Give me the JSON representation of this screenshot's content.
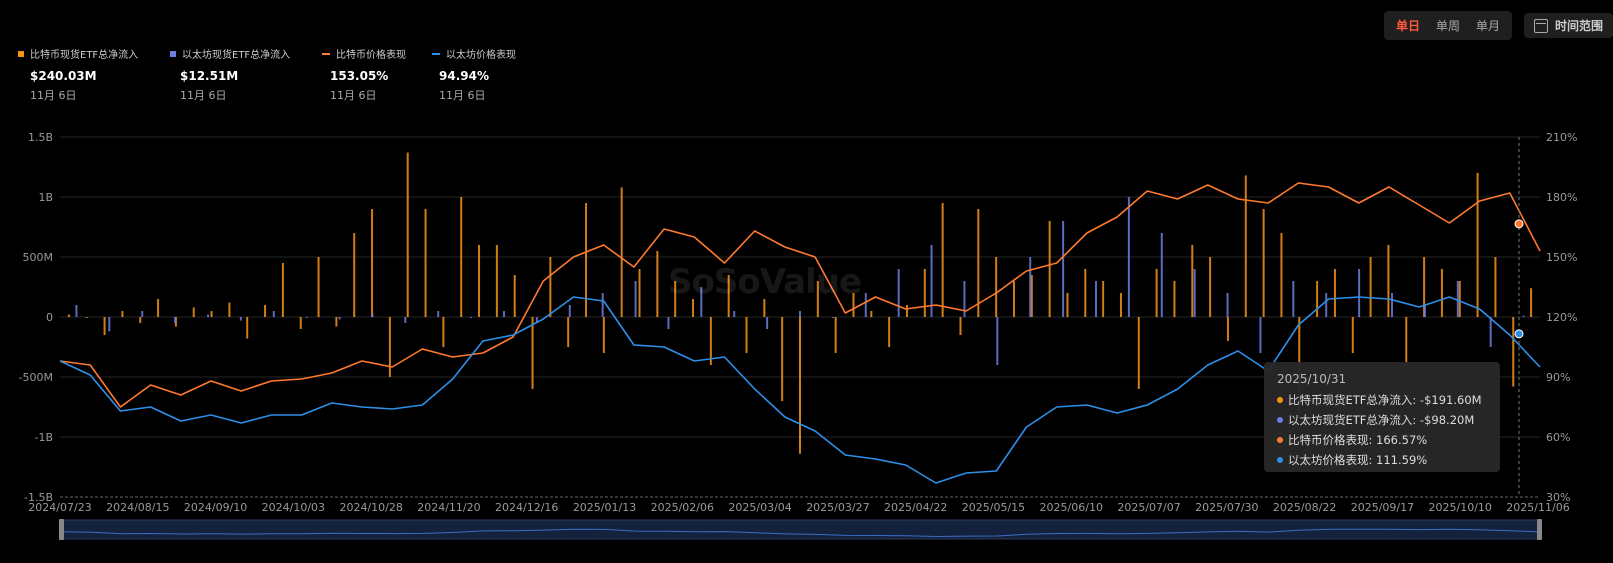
{
  "toolbar": {
    "periods": [
      "单日",
      "单周",
      "单月"
    ],
    "active_period": "单日",
    "range_label": "时间范围"
  },
  "legend": [
    {
      "label": "比特币现货ETF总净流入",
      "value": "$240.03M",
      "date": "11月 6日",
      "color": "#f7931a",
      "kind": "bar"
    },
    {
      "label": "以太坊现货ETF总净流入",
      "value": "$12.51M",
      "date": "11月 6日",
      "color": "#6b7fe0",
      "kind": "bar"
    },
    {
      "label": "比特币价格表现",
      "value": "153.05%",
      "date": "11月 6日",
      "color": "#ff7a2e",
      "kind": "line"
    },
    {
      "label": "以太坊价格表现",
      "value": "94.94%",
      "date": "11月 6日",
      "color": "#2e8fe8",
      "kind": "line"
    }
  ],
  "tooltip": {
    "date": "2025/10/31",
    "rows": [
      {
        "text": "比特币现货ETF总净流入: -$191.60M",
        "color": "#f7931a"
      },
      {
        "text": "以太坊现货ETF总净流入: -$98.20M",
        "color": "#6b7fe0"
      },
      {
        "text": "比特币价格表现: 166.57%",
        "color": "#ff7a2e"
      },
      {
        "text": "以太坊价格表现: 111.59%",
        "color": "#2e8fe8"
      }
    ]
  },
  "watermark": "SoSoValue",
  "chart_data": {
    "type": "bar+line",
    "left_axis": {
      "ticks": [
        "-1.5B",
        "-1B",
        "-500M",
        "0",
        "500M",
        "1B",
        "1.5B"
      ],
      "range": [
        -1.5,
        1.5
      ],
      "unit": "B"
    },
    "right_axis": {
      "ticks": [
        "30%",
        "60%",
        "90%",
        "120%",
        "150%",
        "180%",
        "210%"
      ],
      "range": [
        30,
        210
      ],
      "unit": "%"
    },
    "x_labels": [
      "2024/07/23",
      "2024/08/15",
      "2024/09/10",
      "2024/10/03",
      "2024/10/28",
      "2024/11/20",
      "2024/12/16",
      "2025/01/13",
      "2025/02/06",
      "2025/03/04",
      "2025/03/27",
      "2025/04/22",
      "2025/05/15",
      "2025/06/10",
      "2025/07/07",
      "2025/07/30",
      "2025/08/22",
      "2025/09/17",
      "2025/10/10",
      "2025/11/06"
    ],
    "btc_price_pct": [
      98,
      96,
      75,
      86,
      81,
      88,
      83,
      88,
      89,
      92,
      98,
      95,
      104,
      100,
      102,
      110,
      138,
      150,
      156,
      145,
      164,
      160,
      147,
      163,
      155,
      150,
      122,
      130,
      124,
      126,
      123,
      132,
      143,
      147,
      162,
      170,
      183,
      179,
      186,
      179,
      177,
      187,
      185,
      177,
      185,
      176,
      167,
      178,
      182,
      153
    ],
    "eth_price_pct": [
      98,
      91,
      73,
      75,
      68,
      71,
      67,
      71,
      71,
      77,
      75,
      74,
      76,
      89,
      108,
      111,
      119,
      130,
      128,
      106,
      105,
      98,
      100,
      84,
      70,
      63,
      51,
      49,
      46,
      37,
      42,
      43,
      65,
      75,
      76,
      72,
      76,
      84,
      96,
      103,
      93,
      116,
      129,
      130,
      129,
      125,
      130,
      124,
      111,
      95
    ],
    "btc_flows_B": [
      0.02,
      0.0,
      -0.15,
      0.05,
      -0.05,
      0.15,
      -0.08,
      0.08,
      0.05,
      0.12,
      -0.18,
      0.1,
      0.45,
      -0.1,
      0.5,
      -0.08,
      0.7,
      0.9,
      -0.5,
      1.37,
      0.9,
      -0.25,
      1.0,
      0.6,
      0.6,
      0.35,
      -0.6,
      0.5,
      -0.25,
      0.95,
      -0.3,
      1.08,
      0.4,
      0.55,
      0.3,
      0.15,
      -0.4,
      0.35,
      -0.3,
      0.15,
      -0.7,
      -1.14,
      0.3,
      -0.3,
      0.2,
      0.05,
      -0.25,
      0.1,
      0.4,
      0.95,
      -0.15,
      0.9,
      0.5,
      0.3,
      0.35,
      0.8,
      0.2,
      0.4,
      0.3,
      0.2,
      -0.6,
      0.4,
      0.3,
      0.6,
      0.5,
      -0.2,
      1.18,
      0.9,
      0.7,
      -0.8,
      0.3,
      0.4,
      -0.3,
      0.5,
      0.6,
      -0.4,
      0.5,
      0.4,
      0.3,
      1.2,
      0.5,
      -0.58,
      0.24
    ],
    "eth_flows_B": [
      0.1,
      -0.12,
      0.05,
      -0.05,
      0.02,
      -0.03,
      0.05,
      0.0,
      -0.02,
      0.03,
      -0.05,
      0.05,
      0.0,
      0.05,
      -0.05,
      0.1,
      0.2,
      0.3,
      -0.1,
      0.25,
      0.05,
      -0.1,
      0.05,
      0.0,
      0.2,
      0.4,
      0.6,
      0.3,
      -0.4,
      0.5,
      0.8,
      0.3,
      1.0,
      0.7,
      0.4,
      0.2,
      -0.3,
      0.3,
      0.2,
      0.4,
      0.2,
      0.1,
      0.3,
      -0.25,
      0.01
    ]
  }
}
